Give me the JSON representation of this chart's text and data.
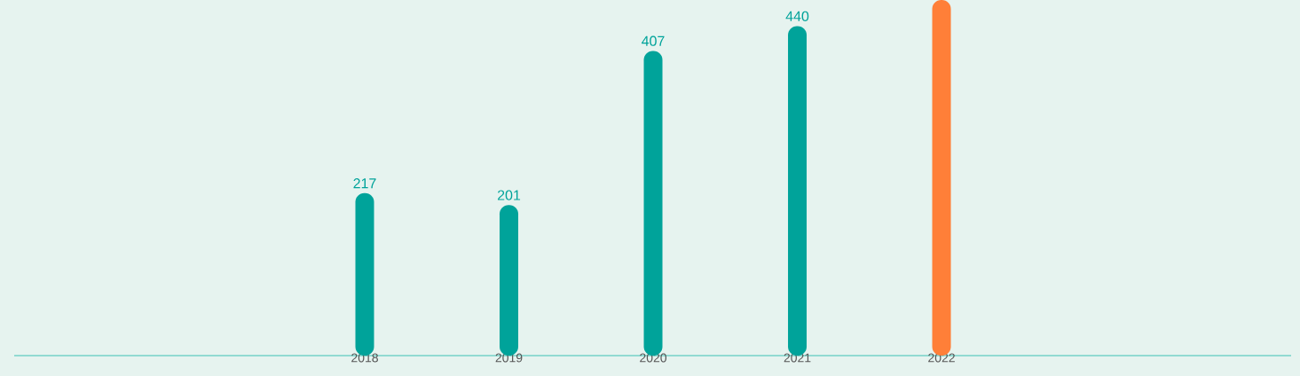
{
  "chart_data": {
    "type": "bar",
    "categories": [
      "2018",
      "2019",
      "2020",
      "2021",
      "2022"
    ],
    "values": [
      217,
      201,
      407,
      440,
      475
    ],
    "colors": [
      "#00a39a",
      "#00a39a",
      "#00a39a",
      "#00a39a",
      "#ff7f38"
    ],
    "value_labels": [
      "217",
      "201",
      "407",
      "440",
      null
    ],
    "ylim": [
      0,
      475
    ],
    "tick_labels": "x"
  }
}
